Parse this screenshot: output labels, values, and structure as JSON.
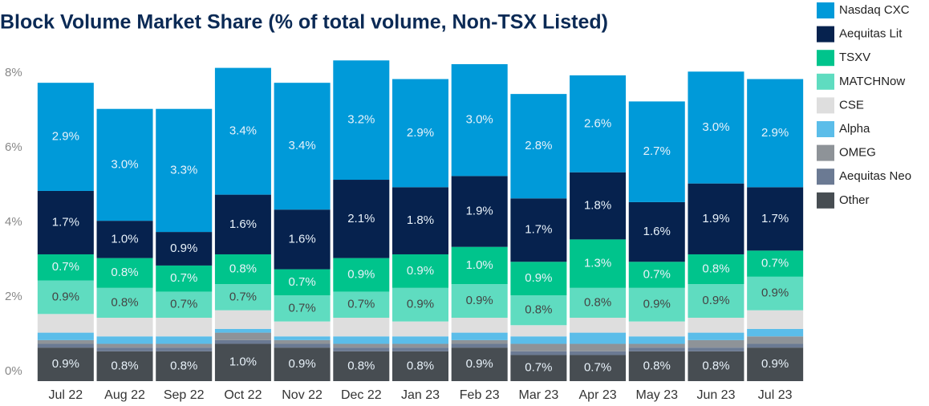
{
  "chart_data": {
    "type": "stacked_bar",
    "title": "Block Volume Market Share (% of total volume, Non-TSX Listed)",
    "categories": [
      "Jul 22",
      "Aug 22",
      "Sep 22",
      "Oct 22",
      "Nov 22",
      "Dec 22",
      "Jan 23",
      "Feb 23",
      "Mar 23",
      "Apr 23",
      "May 23",
      "Jun 23",
      "Jul 23"
    ],
    "ylim": [
      0,
      8.8
    ],
    "yticks": [
      {
        "value": 0,
        "label": "0%"
      },
      {
        "value": 2,
        "label": "2%"
      },
      {
        "value": 4,
        "label": "4%"
      },
      {
        "value": 6,
        "label": "6%"
      },
      {
        "value": 8,
        "label": "8%"
      }
    ],
    "grid": false,
    "legend": "right",
    "series": [
      {
        "name": "Other",
        "color": "#474d52",
        "values": [
          0.9,
          0.8,
          0.8,
          1.0,
          0.9,
          0.8,
          0.8,
          0.9,
          0.7,
          0.7,
          0.8,
          0.8,
          0.9
        ],
        "value_labels": [
          "0.9%",
          "0.8%",
          "0.8%",
          "1.0%",
          "0.9%",
          "0.8%",
          "0.8%",
          "0.9%",
          "0.7%",
          "0.7%",
          "0.8%",
          "0.8%",
          "0.9%"
        ]
      },
      {
        "name": "Aequitas Neo",
        "color": "#6b7a93",
        "values": [
          0.1,
          0.1,
          0.1,
          0.1,
          0.1,
          0.1,
          0.1,
          0.1,
          0.1,
          0.1,
          0.1,
          0.1,
          0.1
        ]
      },
      {
        "name": "OMEG",
        "color": "#8e9398",
        "values": [
          0.1,
          0.1,
          0.1,
          0.2,
          0.1,
          0.1,
          0.1,
          0.1,
          0.2,
          0.2,
          0.1,
          0.2,
          0.2
        ]
      },
      {
        "name": "Alpha",
        "color": "#5bbde9",
        "values": [
          0.2,
          0.2,
          0.2,
          0.1,
          0.1,
          0.2,
          0.2,
          0.2,
          0.2,
          0.3,
          0.2,
          0.2,
          0.2
        ]
      },
      {
        "name": "CSE",
        "color": "#dedede",
        "values": [
          0.5,
          0.5,
          0.5,
          0.5,
          0.4,
          0.5,
          0.4,
          0.4,
          0.3,
          0.4,
          0.4,
          0.4,
          0.5
        ]
      },
      {
        "name": "MATCHNow",
        "color": "#5fdcc0",
        "values": [
          0.9,
          0.8,
          0.7,
          0.7,
          0.7,
          0.7,
          0.9,
          0.9,
          0.8,
          0.8,
          0.9,
          0.9,
          0.9
        ],
        "value_labels": [
          "0.9%",
          "0.8%",
          "0.7%",
          "0.7%",
          "0.7%",
          "0.7%",
          "0.9%",
          "0.9%",
          "0.8%",
          "0.8%",
          "0.9%",
          "0.9%",
          "0.9%"
        ]
      },
      {
        "name": "TSXV",
        "color": "#00c48c",
        "values": [
          0.7,
          0.8,
          0.7,
          0.8,
          0.7,
          0.9,
          0.9,
          1.0,
          0.9,
          1.3,
          0.7,
          0.8,
          0.7
        ],
        "value_labels": [
          "0.7%",
          "0.8%",
          "0.7%",
          "0.8%",
          "0.7%",
          "0.9%",
          "0.9%",
          "1.0%",
          "0.9%",
          "1.3%",
          "0.7%",
          "0.8%",
          "0.7%"
        ]
      },
      {
        "name": "Aequitas Lit",
        "color": "#06224e",
        "values": [
          1.7,
          1.0,
          0.9,
          1.6,
          1.6,
          2.1,
          1.8,
          1.9,
          1.7,
          1.8,
          1.6,
          1.9,
          1.7
        ],
        "value_labels": [
          "1.7%",
          "1.0%",
          "0.9%",
          "1.6%",
          "1.6%",
          "2.1%",
          "1.8%",
          "1.9%",
          "1.7%",
          "1.8%",
          "1.6%",
          "1.9%",
          "1.7%"
        ]
      },
      {
        "name": "Nasdaq CXC",
        "color": "#009ad9",
        "values": [
          2.9,
          3.0,
          3.3,
          3.4,
          3.4,
          3.2,
          2.9,
          3.0,
          2.8,
          2.6,
          2.7,
          3.0,
          2.9
        ],
        "value_labels": [
          "2.9%",
          "3.0%",
          "3.3%",
          "3.4%",
          "3.4%",
          "3.2%",
          "2.9%",
          "3.0%",
          "2.8%",
          "2.6%",
          "2.7%",
          "3.0%",
          "2.9%"
        ]
      }
    ]
  }
}
